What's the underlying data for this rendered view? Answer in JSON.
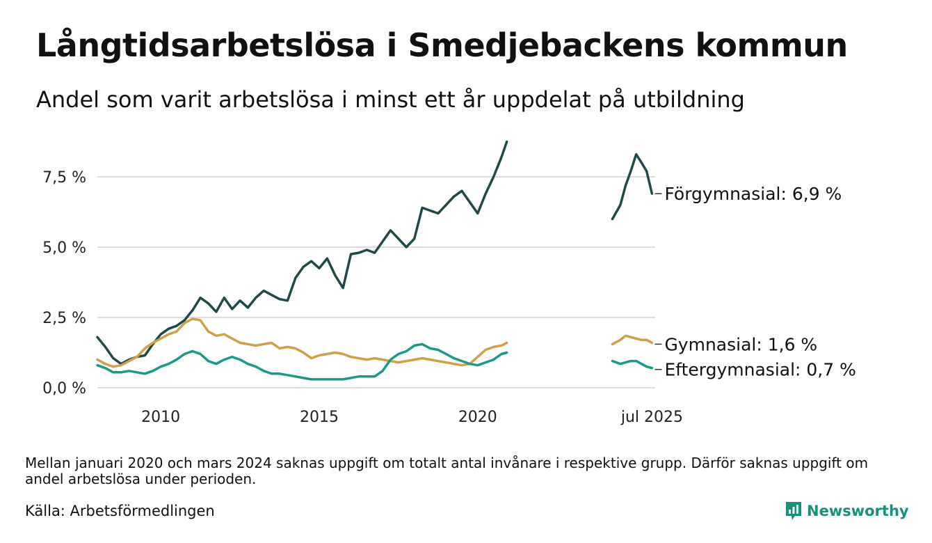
{
  "title": "Långtidsarbetslösa i Smedjebackens kommun",
  "subtitle": "Andel som varit arbetslösa i minst ett år uppdelat på utbildning",
  "note": "Mellan januari 2020 och mars 2024 saknas uppgift om totalt antal invånare i respektive grupp. Därför saknas uppgift om andel arbetslösa under perioden.",
  "source": "Källa: Arbetsförmedlingen",
  "brand": "Newsworthy",
  "colors": {
    "forgymnasial": "#1f4a47",
    "gymnasial": "#cfa04a",
    "eftergymnasial": "#1a9a89",
    "grid": "#dcdcdc",
    "brand": "#18907c"
  },
  "chart_data": {
    "type": "line",
    "y_ticks": [
      {
        "value": 0,
        "label": "0,0 %"
      },
      {
        "value": 2.5,
        "label": "2,5 %"
      },
      {
        "value": 5.0,
        "label": "5,0 %"
      },
      {
        "value": 7.5,
        "label": "7,5 %"
      }
    ],
    "x_ticks": [
      {
        "value": 2010,
        "label": "2010"
      },
      {
        "value": 2015,
        "label": "2015"
      },
      {
        "value": 2020,
        "label": "2020"
      },
      {
        "value": 2025.5,
        "label": "jul 2025"
      }
    ],
    "xlim": [
      2008.0,
      2025.6
    ],
    "ylim": [
      0,
      8.8
    ],
    "grid": true,
    "legend": "end-of-line labels",
    "series": [
      {
        "key": "forgymnasial",
        "end_label": "Förgymnasial: 6,9 %",
        "segments": [
          [
            [
              2008.0,
              1.8
            ],
            [
              2008.25,
              1.45
            ],
            [
              2008.5,
              1.05
            ],
            [
              2008.75,
              0.85
            ],
            [
              2009.0,
              1.0
            ],
            [
              2009.25,
              1.1
            ],
            [
              2009.5,
              1.15
            ],
            [
              2009.75,
              1.55
            ],
            [
              2010.0,
              1.9
            ],
            [
              2010.25,
              2.1
            ],
            [
              2010.5,
              2.2
            ],
            [
              2010.75,
              2.4
            ],
            [
              2011.0,
              2.75
            ],
            [
              2011.25,
              3.2
            ],
            [
              2011.5,
              3.0
            ],
            [
              2011.75,
              2.7
            ],
            [
              2012.0,
              3.2
            ],
            [
              2012.25,
              2.8
            ],
            [
              2012.5,
              3.1
            ],
            [
              2012.75,
              2.85
            ],
            [
              2013.0,
              3.2
            ],
            [
              2013.25,
              3.45
            ],
            [
              2013.5,
              3.3
            ],
            [
              2013.75,
              3.15
            ],
            [
              2014.0,
              3.1
            ],
            [
              2014.25,
              3.9
            ],
            [
              2014.5,
              4.3
            ],
            [
              2014.75,
              4.5
            ],
            [
              2015.0,
              4.25
            ],
            [
              2015.25,
              4.6
            ],
            [
              2015.5,
              4.0
            ],
            [
              2015.75,
              3.55
            ],
            [
              2016.0,
              4.75
            ],
            [
              2016.25,
              4.8
            ],
            [
              2016.5,
              4.9
            ],
            [
              2016.75,
              4.8
            ],
            [
              2017.0,
              5.2
            ],
            [
              2017.25,
              5.6
            ],
            [
              2017.5,
              5.3
            ],
            [
              2017.75,
              5.0
            ],
            [
              2018.0,
              5.3
            ],
            [
              2018.25,
              6.4
            ],
            [
              2018.5,
              6.3
            ],
            [
              2018.75,
              6.2
            ],
            [
              2019.0,
              6.5
            ],
            [
              2019.25,
              6.8
            ],
            [
              2019.5,
              7.0
            ],
            [
              2019.75,
              6.6
            ],
            [
              2020.0,
              6.2
            ],
            [
              2020.25,
              6.9
            ],
            [
              2020.5,
              7.5
            ],
            [
              2020.75,
              8.2
            ],
            [
              2020.92,
              8.75
            ]
          ],
          [
            [
              2024.25,
              6.0
            ],
            [
              2024.5,
              6.5
            ],
            [
              2024.67,
              7.2
            ],
            [
              2024.83,
              7.7
            ],
            [
              2025.0,
              8.3
            ],
            [
              2025.17,
              8.0
            ],
            [
              2025.33,
              7.7
            ],
            [
              2025.5,
              6.9
            ]
          ]
        ]
      },
      {
        "key": "gymnasial",
        "end_label": "Gymnasial: 1,6 %",
        "segments": [
          [
            [
              2008.0,
              1.0
            ],
            [
              2008.25,
              0.85
            ],
            [
              2008.5,
              0.75
            ],
            [
              2008.75,
              0.8
            ],
            [
              2009.0,
              0.95
            ],
            [
              2009.25,
              1.1
            ],
            [
              2009.5,
              1.4
            ],
            [
              2009.75,
              1.6
            ],
            [
              2010.0,
              1.75
            ],
            [
              2010.25,
              1.9
            ],
            [
              2010.5,
              2.0
            ],
            [
              2010.75,
              2.3
            ],
            [
              2011.0,
              2.45
            ],
            [
              2011.25,
              2.4
            ],
            [
              2011.5,
              2.0
            ],
            [
              2011.75,
              1.85
            ],
            [
              2012.0,
              1.9
            ],
            [
              2012.25,
              1.75
            ],
            [
              2012.5,
              1.6
            ],
            [
              2012.75,
              1.55
            ],
            [
              2013.0,
              1.5
            ],
            [
              2013.25,
              1.55
            ],
            [
              2013.5,
              1.6
            ],
            [
              2013.75,
              1.4
            ],
            [
              2014.0,
              1.45
            ],
            [
              2014.25,
              1.4
            ],
            [
              2014.5,
              1.25
            ],
            [
              2014.75,
              1.05
            ],
            [
              2015.0,
              1.15
            ],
            [
              2015.25,
              1.2
            ],
            [
              2015.5,
              1.25
            ],
            [
              2015.75,
              1.2
            ],
            [
              2016.0,
              1.1
            ],
            [
              2016.25,
              1.05
            ],
            [
              2016.5,
              1.0
            ],
            [
              2016.75,
              1.05
            ],
            [
              2017.0,
              1.0
            ],
            [
              2017.25,
              0.95
            ],
            [
              2017.5,
              0.9
            ],
            [
              2017.75,
              0.95
            ],
            [
              2018.0,
              1.0
            ],
            [
              2018.25,
              1.05
            ],
            [
              2018.5,
              1.0
            ],
            [
              2018.75,
              0.95
            ],
            [
              2019.0,
              0.9
            ],
            [
              2019.25,
              0.85
            ],
            [
              2019.5,
              0.8
            ],
            [
              2019.75,
              0.85
            ],
            [
              2020.0,
              1.1
            ],
            [
              2020.25,
              1.35
            ],
            [
              2020.5,
              1.45
            ],
            [
              2020.75,
              1.5
            ],
            [
              2020.92,
              1.6
            ]
          ],
          [
            [
              2024.25,
              1.55
            ],
            [
              2024.5,
              1.7
            ],
            [
              2024.67,
              1.85
            ],
            [
              2024.83,
              1.8
            ],
            [
              2025.0,
              1.75
            ],
            [
              2025.17,
              1.7
            ],
            [
              2025.33,
              1.7
            ],
            [
              2025.5,
              1.6
            ]
          ]
        ]
      },
      {
        "key": "eftergymnasial",
        "end_label": "Eftergymnasial: 0,7 %",
        "segments": [
          [
            [
              2008.0,
              0.8
            ],
            [
              2008.25,
              0.7
            ],
            [
              2008.5,
              0.55
            ],
            [
              2008.75,
              0.55
            ],
            [
              2009.0,
              0.6
            ],
            [
              2009.25,
              0.55
            ],
            [
              2009.5,
              0.5
            ],
            [
              2009.75,
              0.6
            ],
            [
              2010.0,
              0.75
            ],
            [
              2010.25,
              0.85
            ],
            [
              2010.5,
              1.0
            ],
            [
              2010.75,
              1.2
            ],
            [
              2011.0,
              1.3
            ],
            [
              2011.25,
              1.2
            ],
            [
              2011.5,
              0.95
            ],
            [
              2011.75,
              0.85
            ],
            [
              2012.0,
              1.0
            ],
            [
              2012.25,
              1.1
            ],
            [
              2012.5,
              1.0
            ],
            [
              2012.75,
              0.85
            ],
            [
              2013.0,
              0.75
            ],
            [
              2013.25,
              0.6
            ],
            [
              2013.5,
              0.5
            ],
            [
              2013.75,
              0.5
            ],
            [
              2014.0,
              0.45
            ],
            [
              2014.25,
              0.4
            ],
            [
              2014.5,
              0.35
            ],
            [
              2014.75,
              0.3
            ],
            [
              2015.0,
              0.3
            ],
            [
              2015.25,
              0.3
            ],
            [
              2015.5,
              0.3
            ],
            [
              2015.75,
              0.3
            ],
            [
              2016.0,
              0.35
            ],
            [
              2016.25,
              0.4
            ],
            [
              2016.5,
              0.4
            ],
            [
              2016.75,
              0.4
            ],
            [
              2017.0,
              0.6
            ],
            [
              2017.25,
              1.0
            ],
            [
              2017.5,
              1.2
            ],
            [
              2017.75,
              1.3
            ],
            [
              2018.0,
              1.5
            ],
            [
              2018.25,
              1.55
            ],
            [
              2018.5,
              1.4
            ],
            [
              2018.75,
              1.35
            ],
            [
              2019.0,
              1.2
            ],
            [
              2019.25,
              1.05
            ],
            [
              2019.5,
              0.95
            ],
            [
              2019.75,
              0.85
            ],
            [
              2020.0,
              0.8
            ],
            [
              2020.25,
              0.9
            ],
            [
              2020.5,
              1.0
            ],
            [
              2020.75,
              1.2
            ],
            [
              2020.92,
              1.25
            ]
          ],
          [
            [
              2024.25,
              0.95
            ],
            [
              2024.5,
              0.85
            ],
            [
              2024.67,
              0.9
            ],
            [
              2024.83,
              0.95
            ],
            [
              2025.0,
              0.95
            ],
            [
              2025.17,
              0.85
            ],
            [
              2025.33,
              0.75
            ],
            [
              2025.5,
              0.7
            ]
          ]
        ]
      }
    ]
  }
}
